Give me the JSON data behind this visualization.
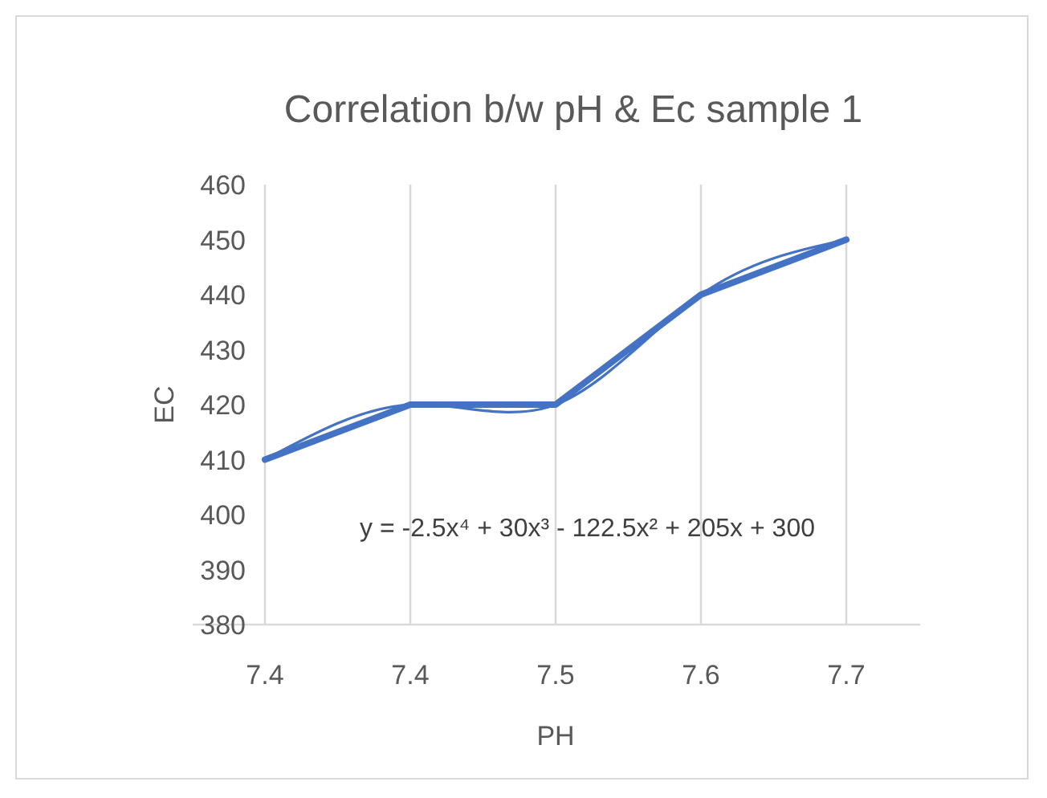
{
  "chart_data": {
    "type": "line",
    "title": "Correlation  b/w pH & Ec sample 1",
    "xlabel": "PH",
    "ylabel": "EC",
    "categories": [
      "7.4",
      "7.4",
      "7.5",
      "7.6",
      "7.7"
    ],
    "series": [
      {
        "color": "#4472c4",
        "values": [
          410,
          420,
          420,
          440,
          450
        ]
      },
      {
        "color": "#4472c4",
        "values": [
          410,
          420,
          420,
          440,
          450
        ]
      }
    ],
    "ylim": [
      380,
      460
    ],
    "yticks": [
      380,
      390,
      400,
      410,
      420,
      430,
      440,
      450,
      460
    ],
    "grid": "x",
    "marker": "none",
    "line_style": "solid",
    "annotations": [
      "y = -2.5x⁴ + 30x³ - 122.5x² + 205x + 300"
    ]
  }
}
